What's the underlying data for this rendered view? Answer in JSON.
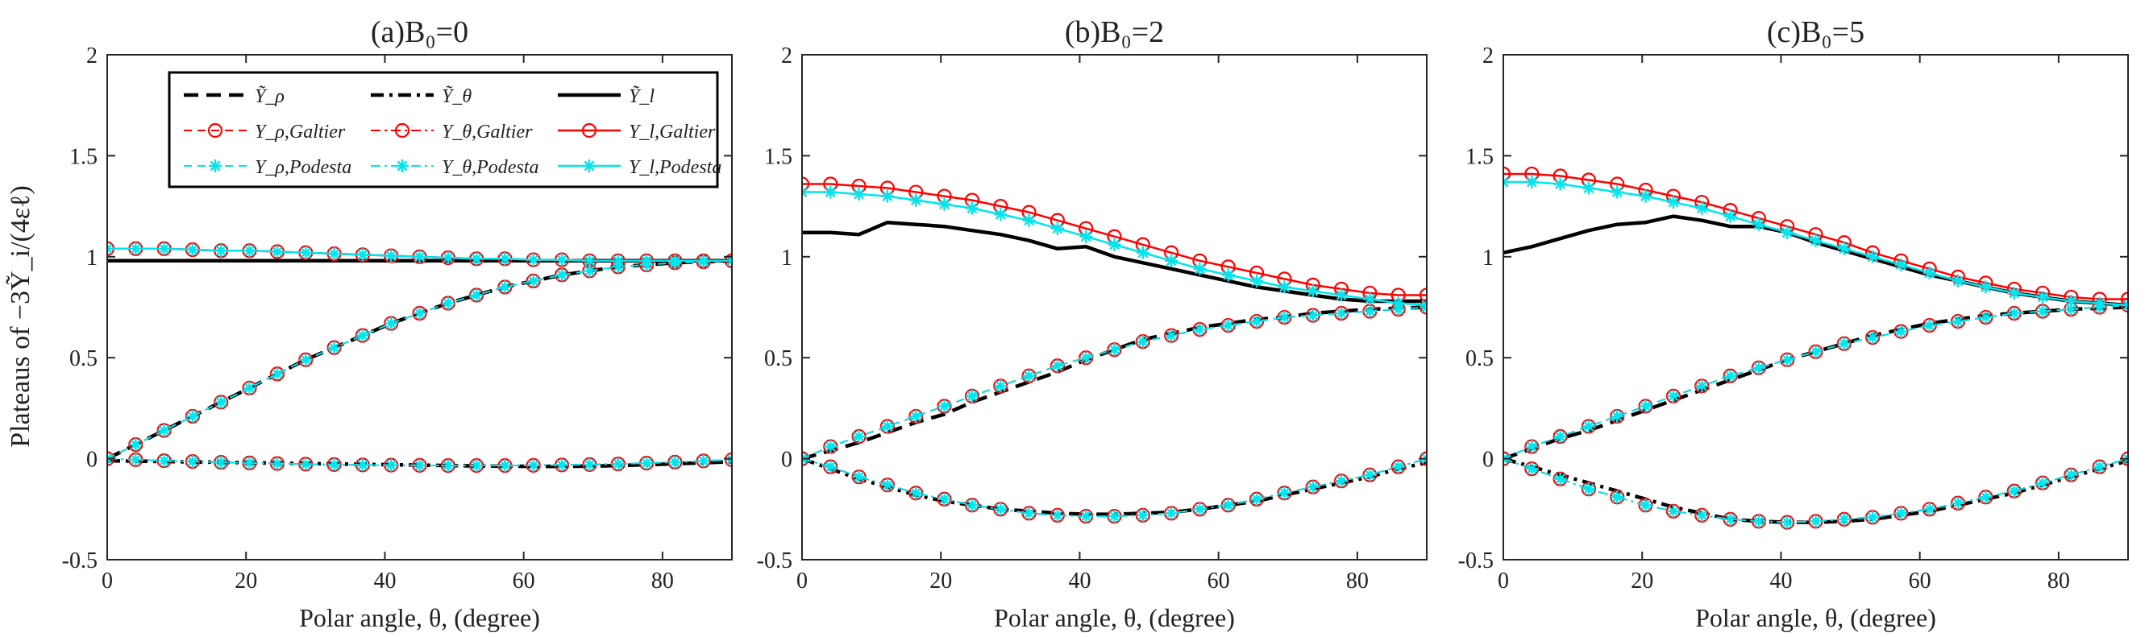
{
  "figure": {
    "ylabel": "Plateaus of −3Ỹ_i/(4εℓ)",
    "xlabel": "Polar angle, θ, (degree)"
  },
  "legend": {
    "items": [
      {
        "label": "Ỹ_ρ",
        "series": "Y_rho_tilde"
      },
      {
        "label": "Ỹ_θ",
        "series": "Y_theta_tilde"
      },
      {
        "label": "Ỹ_l",
        "series": "Y_l_tilde"
      },
      {
        "label": "Y_ρ,Galtier",
        "series": "Y_rho_Galtier"
      },
      {
        "label": "Y_θ,Galtier",
        "series": "Y_theta_Galtier"
      },
      {
        "label": "Y_l,Galtier",
        "series": "Y_l_Galtier"
      },
      {
        "label": "Y_ρ,Podesta",
        "series": "Y_rho_Podesta"
      },
      {
        "label": "Y_θ,Podesta",
        "series": "Y_theta_Podesta"
      },
      {
        "label": "Y_l,Podesta",
        "series": "Y_l_Podesta"
      }
    ]
  },
  "colors": {
    "black": "#000000",
    "galtier": "#ff0000",
    "podesta": "#00e5ee",
    "axis": "#262626"
  },
  "chart_data": [
    {
      "type": "line",
      "title": "(a)B₀=0",
      "xlabel": "Polar angle, θ, (degree)",
      "ylabel": "Plateaus of −3Ỹ_i/(4εℓ)",
      "xlim": [
        0,
        90
      ],
      "ylim": [
        -0.5,
        2
      ],
      "xticks": [
        0,
        20,
        40,
        60,
        80
      ],
      "yticks": [
        -0.5,
        0,
        0.5,
        1,
        1.5,
        2
      ],
      "x": [
        0,
        4.1,
        8.2,
        12.3,
        16.4,
        20.5,
        24.5,
        28.6,
        32.7,
        36.8,
        40.9,
        45,
        49.1,
        53.2,
        57.3,
        61.4,
        65.5,
        69.5,
        73.6,
        77.7,
        81.8,
        85.9,
        90
      ],
      "series": [
        {
          "name": "Y_rho_tilde",
          "values": [
            0.0,
            0.07,
            0.14,
            0.21,
            0.28,
            0.35,
            0.42,
            0.49,
            0.55,
            0.61,
            0.67,
            0.72,
            0.77,
            0.81,
            0.85,
            0.88,
            0.91,
            0.93,
            0.95,
            0.96,
            0.97,
            0.975,
            0.98
          ]
        },
        {
          "name": "Y_theta_tilde",
          "values": [
            -0.01,
            -0.012,
            -0.014,
            -0.016,
            -0.018,
            -0.02,
            -0.022,
            -0.024,
            -0.026,
            -0.028,
            -0.03,
            -0.032,
            -0.034,
            -0.036,
            -0.037,
            -0.038,
            -0.038,
            -0.037,
            -0.034,
            -0.03,
            -0.025,
            -0.02,
            -0.015
          ]
        },
        {
          "name": "Y_l_tilde",
          "values": [
            0.98,
            0.98,
            0.98,
            0.98,
            0.98,
            0.98,
            0.98,
            0.98,
            0.98,
            0.98,
            0.98,
            0.98,
            0.98,
            0.98,
            0.98,
            0.98,
            0.98,
            0.98,
            0.98,
            0.98,
            0.98,
            0.98,
            0.98
          ]
        },
        {
          "name": "Y_rho_Galtier",
          "values": [
            0.0,
            0.07,
            0.14,
            0.21,
            0.28,
            0.35,
            0.42,
            0.49,
            0.55,
            0.61,
            0.67,
            0.72,
            0.77,
            0.81,
            0.85,
            0.88,
            0.91,
            0.93,
            0.95,
            0.96,
            0.97,
            0.975,
            0.98
          ]
        },
        {
          "name": "Y_theta_Galtier",
          "values": [
            0.0,
            -0.005,
            -0.01,
            -0.014,
            -0.018,
            -0.021,
            -0.024,
            -0.027,
            -0.029,
            -0.031,
            -0.032,
            -0.033,
            -0.034,
            -0.034,
            -0.034,
            -0.033,
            -0.031,
            -0.029,
            -0.026,
            -0.022,
            -0.017,
            -0.011,
            -0.005
          ]
        },
        {
          "name": "Y_l_Galtier",
          "values": [
            1.04,
            1.04,
            1.04,
            1.035,
            1.03,
            1.03,
            1.025,
            1.02,
            1.015,
            1.01,
            1.005,
            1.0,
            0.995,
            0.99,
            0.99,
            0.985,
            0.985,
            0.98,
            0.98,
            0.98,
            0.98,
            0.98,
            0.98
          ]
        },
        {
          "name": "Y_rho_Podesta",
          "values": [
            0.0,
            0.07,
            0.14,
            0.21,
            0.28,
            0.35,
            0.42,
            0.49,
            0.55,
            0.61,
            0.67,
            0.72,
            0.77,
            0.81,
            0.85,
            0.88,
            0.91,
            0.93,
            0.95,
            0.96,
            0.97,
            0.975,
            0.98
          ]
        },
        {
          "name": "Y_theta_Podesta",
          "values": [
            0.0,
            -0.005,
            -0.01,
            -0.014,
            -0.018,
            -0.021,
            -0.024,
            -0.027,
            -0.029,
            -0.031,
            -0.032,
            -0.033,
            -0.034,
            -0.034,
            -0.034,
            -0.033,
            -0.031,
            -0.029,
            -0.026,
            -0.022,
            -0.017,
            -0.011,
            -0.005
          ]
        },
        {
          "name": "Y_l_Podesta",
          "values": [
            1.04,
            1.04,
            1.04,
            1.035,
            1.03,
            1.03,
            1.025,
            1.02,
            1.015,
            1.01,
            1.005,
            1.0,
            0.995,
            0.99,
            0.99,
            0.985,
            0.985,
            0.98,
            0.98,
            0.98,
            0.98,
            0.98,
            0.98
          ]
        }
      ]
    },
    {
      "type": "line",
      "title": "(b)B₀=2",
      "xlabel": "Polar angle, θ, (degree)",
      "xlim": [
        0,
        90
      ],
      "ylim": [
        -0.5,
        2
      ],
      "xticks": [
        0,
        20,
        40,
        60,
        80
      ],
      "yticks": [
        -0.5,
        0,
        0.5,
        1,
        1.5,
        2
      ],
      "x": [
        0,
        4.1,
        8.2,
        12.3,
        16.4,
        20.5,
        24.5,
        28.6,
        32.7,
        36.8,
        40.9,
        45,
        49.1,
        53.2,
        57.3,
        61.4,
        65.5,
        69.5,
        73.6,
        77.7,
        81.8,
        85.9,
        90
      ],
      "series": [
        {
          "name": "Y_rho_tilde",
          "values": [
            0.0,
            0.04,
            0.08,
            0.13,
            0.18,
            0.22,
            0.28,
            0.33,
            0.38,
            0.43,
            0.49,
            0.54,
            0.59,
            0.62,
            0.65,
            0.67,
            0.69,
            0.7,
            0.72,
            0.73,
            0.74,
            0.745,
            0.75
          ]
        },
        {
          "name": "Y_theta_tilde",
          "values": [
            0.0,
            -0.05,
            -0.1,
            -0.14,
            -0.18,
            -0.21,
            -0.23,
            -0.25,
            -0.26,
            -0.27,
            -0.275,
            -0.275,
            -0.27,
            -0.265,
            -0.25,
            -0.23,
            -0.21,
            -0.18,
            -0.15,
            -0.12,
            -0.09,
            -0.05,
            -0.02
          ]
        },
        {
          "name": "Y_l_tilde",
          "values": [
            1.12,
            1.12,
            1.11,
            1.17,
            1.16,
            1.15,
            1.13,
            1.11,
            1.08,
            1.04,
            1.05,
            1.0,
            0.97,
            0.94,
            0.91,
            0.88,
            0.85,
            0.83,
            0.81,
            0.79,
            0.78,
            0.78,
            0.78
          ]
        },
        {
          "name": "Y_rho_Galtier",
          "values": [
            0.0,
            0.06,
            0.11,
            0.16,
            0.21,
            0.26,
            0.31,
            0.36,
            0.41,
            0.46,
            0.5,
            0.54,
            0.58,
            0.61,
            0.64,
            0.66,
            0.68,
            0.7,
            0.71,
            0.72,
            0.73,
            0.74,
            0.75
          ]
        },
        {
          "name": "Y_theta_Galtier",
          "values": [
            0.0,
            -0.04,
            -0.09,
            -0.13,
            -0.17,
            -0.2,
            -0.23,
            -0.25,
            -0.27,
            -0.28,
            -0.285,
            -0.285,
            -0.28,
            -0.27,
            -0.25,
            -0.23,
            -0.2,
            -0.17,
            -0.14,
            -0.11,
            -0.08,
            -0.04,
            0.0
          ]
        },
        {
          "name": "Y_l_Galtier",
          "values": [
            1.36,
            1.36,
            1.35,
            1.34,
            1.32,
            1.3,
            1.28,
            1.25,
            1.22,
            1.18,
            1.14,
            1.1,
            1.06,
            1.02,
            0.98,
            0.95,
            0.92,
            0.89,
            0.86,
            0.84,
            0.82,
            0.81,
            0.81
          ]
        },
        {
          "name": "Y_rho_Podesta",
          "values": [
            0.0,
            0.06,
            0.11,
            0.16,
            0.21,
            0.26,
            0.31,
            0.36,
            0.41,
            0.46,
            0.5,
            0.54,
            0.58,
            0.61,
            0.64,
            0.66,
            0.68,
            0.7,
            0.71,
            0.72,
            0.73,
            0.74,
            0.75
          ]
        },
        {
          "name": "Y_theta_Podesta",
          "values": [
            0.0,
            -0.04,
            -0.09,
            -0.13,
            -0.17,
            -0.2,
            -0.23,
            -0.25,
            -0.27,
            -0.28,
            -0.285,
            -0.285,
            -0.28,
            -0.27,
            -0.25,
            -0.23,
            -0.2,
            -0.17,
            -0.14,
            -0.11,
            -0.08,
            -0.04,
            0.0
          ]
        },
        {
          "name": "Y_l_Podesta",
          "values": [
            1.32,
            1.32,
            1.31,
            1.3,
            1.28,
            1.26,
            1.24,
            1.21,
            1.18,
            1.14,
            1.1,
            1.06,
            1.02,
            0.98,
            0.94,
            0.91,
            0.88,
            0.85,
            0.83,
            0.81,
            0.79,
            0.77,
            0.76
          ]
        }
      ]
    },
    {
      "type": "line",
      "title": "(c)B₀=5",
      "xlabel": "Polar angle, θ, (degree)",
      "xlim": [
        0,
        90
      ],
      "ylim": [
        -0.5,
        2
      ],
      "xticks": [
        0,
        20,
        40,
        60,
        80
      ],
      "yticks": [
        -0.5,
        0,
        0.5,
        1,
        1.5,
        2
      ],
      "x": [
        0,
        4.1,
        8.2,
        12.3,
        16.4,
        20.5,
        24.5,
        28.6,
        32.7,
        36.8,
        40.9,
        45,
        49.1,
        53.2,
        57.3,
        61.4,
        65.5,
        69.5,
        73.6,
        77.7,
        81.8,
        85.9,
        90
      ],
      "series": [
        {
          "name": "Y_rho_tilde",
          "values": [
            0.0,
            0.05,
            0.1,
            0.14,
            0.19,
            0.24,
            0.29,
            0.34,
            0.39,
            0.44,
            0.49,
            0.53,
            0.57,
            0.61,
            0.64,
            0.67,
            0.69,
            0.71,
            0.72,
            0.73,
            0.74,
            0.745,
            0.75
          ]
        },
        {
          "name": "Y_theta_tilde",
          "values": [
            0.0,
            -0.04,
            -0.08,
            -0.12,
            -0.16,
            -0.2,
            -0.24,
            -0.27,
            -0.3,
            -0.31,
            -0.315,
            -0.315,
            -0.31,
            -0.3,
            -0.28,
            -0.26,
            -0.23,
            -0.2,
            -0.17,
            -0.13,
            -0.09,
            -0.05,
            -0.01
          ]
        },
        {
          "name": "Y_l_tilde",
          "values": [
            1.02,
            1.05,
            1.09,
            1.13,
            1.16,
            1.17,
            1.2,
            1.18,
            1.15,
            1.15,
            1.12,
            1.07,
            1.03,
            0.99,
            0.95,
            0.91,
            0.88,
            0.85,
            0.82,
            0.8,
            0.78,
            0.77,
            0.76
          ]
        },
        {
          "name": "Y_rho_Galtier",
          "values": [
            0.0,
            0.06,
            0.11,
            0.16,
            0.21,
            0.26,
            0.31,
            0.36,
            0.41,
            0.45,
            0.49,
            0.53,
            0.57,
            0.6,
            0.63,
            0.66,
            0.68,
            0.7,
            0.72,
            0.73,
            0.74,
            0.75,
            0.76
          ]
        },
        {
          "name": "Y_theta_Galtier",
          "values": [
            0.0,
            -0.05,
            -0.1,
            -0.15,
            -0.19,
            -0.23,
            -0.26,
            -0.28,
            -0.3,
            -0.31,
            -0.315,
            -0.31,
            -0.3,
            -0.29,
            -0.27,
            -0.25,
            -0.22,
            -0.19,
            -0.16,
            -0.12,
            -0.08,
            -0.04,
            0.0
          ]
        },
        {
          "name": "Y_l_Galtier",
          "values": [
            1.41,
            1.41,
            1.4,
            1.38,
            1.36,
            1.33,
            1.3,
            1.27,
            1.23,
            1.19,
            1.15,
            1.11,
            1.07,
            1.02,
            0.98,
            0.94,
            0.9,
            0.87,
            0.84,
            0.82,
            0.8,
            0.79,
            0.79
          ]
        },
        {
          "name": "Y_rho_Podesta",
          "values": [
            0.0,
            0.06,
            0.11,
            0.16,
            0.21,
            0.26,
            0.31,
            0.36,
            0.41,
            0.45,
            0.49,
            0.53,
            0.57,
            0.6,
            0.63,
            0.66,
            0.68,
            0.7,
            0.72,
            0.73,
            0.74,
            0.75,
            0.76
          ]
        },
        {
          "name": "Y_theta_Podesta",
          "values": [
            0.0,
            -0.05,
            -0.1,
            -0.15,
            -0.19,
            -0.23,
            -0.26,
            -0.28,
            -0.3,
            -0.31,
            -0.315,
            -0.31,
            -0.3,
            -0.29,
            -0.27,
            -0.25,
            -0.22,
            -0.19,
            -0.16,
            -0.12,
            -0.08,
            -0.04,
            0.0
          ]
        },
        {
          "name": "Y_l_Podesta",
          "values": [
            1.37,
            1.37,
            1.36,
            1.34,
            1.32,
            1.3,
            1.27,
            1.24,
            1.2,
            1.16,
            1.12,
            1.08,
            1.04,
            1.0,
            0.96,
            0.92,
            0.88,
            0.85,
            0.82,
            0.8,
            0.78,
            0.77,
            0.76
          ]
        }
      ]
    }
  ]
}
